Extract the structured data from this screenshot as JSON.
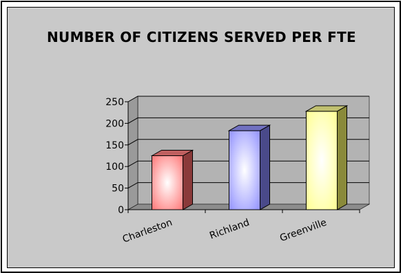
{
  "chart_data": {
    "type": "bar",
    "title": "NUMBER OF CITIZENS SERVED PER FTE",
    "categories": [
      "Charleston",
      "Richland",
      "Greenville"
    ],
    "values": [
      125,
      183,
      228
    ],
    "ylim": [
      0,
      250
    ],
    "yticks": [
      0,
      50,
      100,
      150,
      200,
      250
    ],
    "grid": true,
    "bar_colors": [
      "#ff8080",
      "#9999ff",
      "#ffff99"
    ],
    "bar_side_colors": [
      "#8a3a3a",
      "#4a4a8a",
      "#8a8a3a"
    ],
    "bar_top_colors": [
      "#c06060",
      "#7070c0",
      "#c0c070"
    ],
    "plot_background": "#b3b3b3",
    "chart_background": "#c9c9c9"
  }
}
